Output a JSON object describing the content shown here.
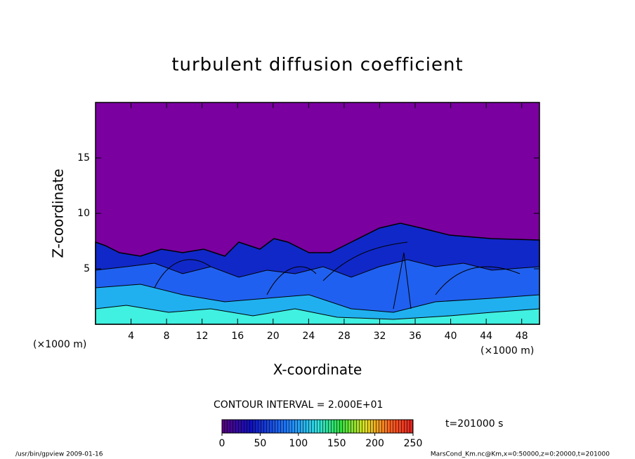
{
  "chart_data": {
    "type": "contour",
    "title": "turbulent diffusion coefficient",
    "x_label": "X-coordinate",
    "y_label": "Z-coordinate",
    "x_unit_label": "(×1000 m)",
    "xlim": [
      0,
      50
    ],
    "xticks": [
      4,
      8,
      12,
      16,
      20,
      24,
      28,
      32,
      36,
      40,
      44,
      48
    ],
    "ylim": [
      0,
      20
    ],
    "yticks": [
      5,
      10,
      15
    ],
    "contour_interval_label": "CONTOUR INTERVAL = 2.000E+01",
    "time_label": "t=201000 s",
    "colorbar_lim": [
      0,
      250
    ],
    "colorbar_ticks": [
      0,
      50,
      100,
      150,
      200,
      250
    ],
    "footer_left": "/usr/bin/gpview   2009-01-16",
    "footer_right": "MarsCond_Km.nc@Km,x=0:50000,z=0:20000,t=201000"
  }
}
